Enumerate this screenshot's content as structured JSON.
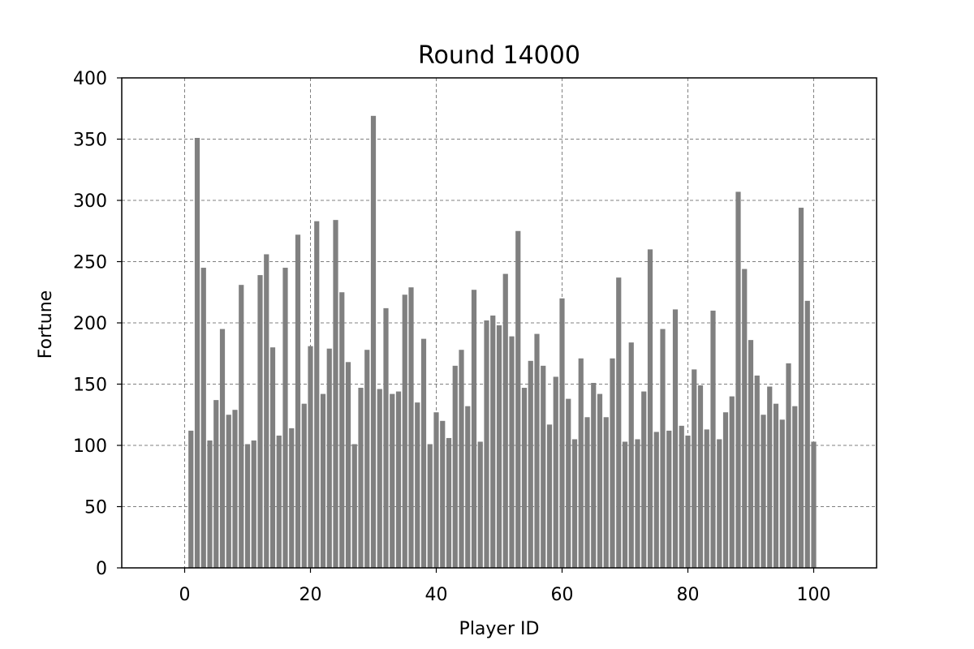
{
  "chart_data": {
    "type": "bar",
    "title": "Round 14000",
    "xlabel": "Player ID",
    "ylabel": "Fortune",
    "xlim": [
      -10,
      110
    ],
    "ylim": [
      0,
      400
    ],
    "xticks": [
      0,
      20,
      40,
      60,
      80,
      100
    ],
    "yticks": [
      0,
      50,
      100,
      150,
      200,
      250,
      300,
      350,
      400
    ],
    "grid": true,
    "bar_color": "#808080",
    "x": [
      1,
      2,
      3,
      4,
      5,
      6,
      7,
      8,
      9,
      10,
      11,
      12,
      13,
      14,
      15,
      16,
      17,
      18,
      19,
      20,
      21,
      22,
      23,
      24,
      25,
      26,
      27,
      28,
      29,
      30,
      31,
      32,
      33,
      34,
      35,
      36,
      37,
      38,
      39,
      40,
      41,
      42,
      43,
      44,
      45,
      46,
      47,
      48,
      49,
      50,
      51,
      52,
      53,
      54,
      55,
      56,
      57,
      58,
      59,
      60,
      61,
      62,
      63,
      64,
      65,
      66,
      67,
      68,
      69,
      70,
      71,
      72,
      73,
      74,
      75,
      76,
      77,
      78,
      79,
      80,
      81,
      82,
      83,
      84,
      85,
      86,
      87,
      88,
      89,
      90,
      91,
      92,
      93,
      94,
      95,
      96,
      97,
      98,
      99,
      100
    ],
    "values": [
      112,
      351,
      245,
      104,
      137,
      195,
      125,
      129,
      231,
      101,
      104,
      239,
      256,
      180,
      108,
      245,
      114,
      272,
      134,
      181,
      283,
      142,
      179,
      284,
      225,
      168,
      101,
      147,
      178,
      369,
      146,
      212,
      142,
      144,
      223,
      229,
      135,
      187,
      101,
      127,
      120,
      106,
      165,
      178,
      132,
      227,
      103,
      202,
      206,
      198,
      240,
      189,
      275,
      147,
      169,
      191,
      165,
      117,
      156,
      220,
      138,
      105,
      171,
      123,
      151,
      142,
      123,
      171,
      237,
      103,
      184,
      105,
      144,
      260,
      111,
      195,
      112,
      211,
      116,
      108,
      162,
      149,
      113,
      210,
      105,
      127,
      140,
      307,
      244,
      186,
      157,
      125,
      148,
      134,
      121,
      167,
      132,
      294,
      218,
      103
    ]
  }
}
